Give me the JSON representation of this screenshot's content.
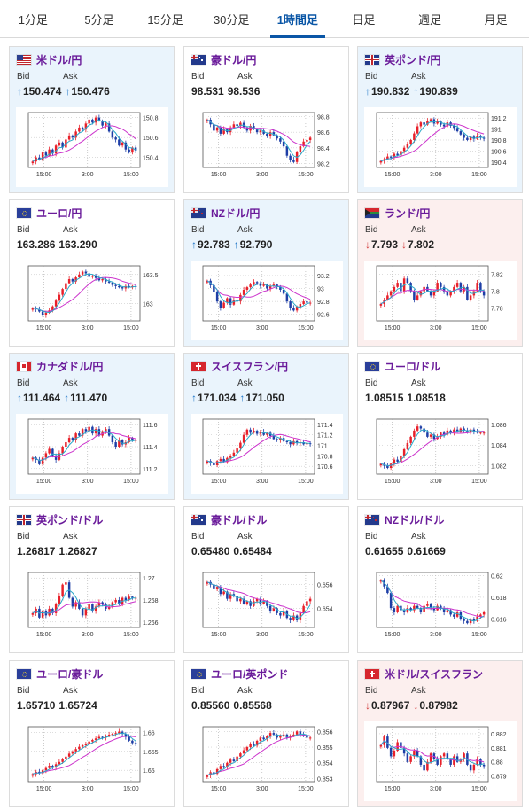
{
  "tabs": [
    {
      "label": "1分足",
      "active": false
    },
    {
      "label": "5分足",
      "active": false
    },
    {
      "label": "15分足",
      "active": false
    },
    {
      "label": "30分足",
      "active": false
    },
    {
      "label": "1時間足",
      "active": true
    },
    {
      "label": "日足",
      "active": false
    },
    {
      "label": "週足",
      "active": false
    },
    {
      "label": "月足",
      "active": false
    }
  ],
  "labels": {
    "bid": "Bid",
    "ask": "Ask"
  },
  "x_ticks": [
    "15:00",
    "3:00",
    "15:00"
  ],
  "colors": {
    "up_bg": "#eaf4fc",
    "down_bg": "#fcefee",
    "pair_name": "#6a1b9a",
    "arrow_up": "#1a73c7",
    "arrow_down": "#d23b3b",
    "candle_up": "#e8202a",
    "candle_down": "#1e3ea6",
    "ma_short": "#2aa9c9",
    "ma_long": "#cc33cc",
    "active_tab": "#0a56a6"
  },
  "pairs": [
    {
      "name": "米ドル/円",
      "flag": "us-flag",
      "trend": "up",
      "bid": "150.474",
      "ask": "150.476",
      "chart_data": {
        "type": "candlestick",
        "ylim": [
          150.3,
          150.85
        ],
        "yticks": [
          "150.8",
          "150.6",
          "150.4"
        ],
        "ytick_values": [
          150.8,
          150.6,
          150.4
        ],
        "closes": [
          150.36,
          150.4,
          150.38,
          150.45,
          150.42,
          150.48,
          150.44,
          150.52,
          150.55,
          150.5,
          150.58,
          150.62,
          150.6,
          150.66,
          150.7,
          150.68,
          150.74,
          150.78,
          150.75,
          150.8,
          150.77,
          150.72,
          150.74,
          150.66,
          150.6,
          150.58,
          150.52,
          150.55,
          150.48,
          150.45,
          150.5,
          150.47
        ]
      }
    },
    {
      "name": "豪ドル/円",
      "flag": "au-flag",
      "trend": "none",
      "bid": "98.531",
      "ask": "98.536",
      "chart_data": {
        "type": "candlestick",
        "ylim": [
          98.15,
          98.85
        ],
        "yticks": [
          "98.8",
          "98.6",
          "98.4",
          "98.2"
        ],
        "ytick_values": [
          98.8,
          98.6,
          98.4,
          98.2
        ],
        "closes": [
          98.76,
          98.7,
          98.62,
          98.66,
          98.58,
          98.64,
          98.6,
          98.66,
          98.7,
          98.68,
          98.72,
          98.66,
          98.62,
          98.68,
          98.64,
          98.6,
          98.62,
          98.58,
          98.55,
          98.6,
          98.56,
          98.52,
          98.48,
          98.42,
          98.3,
          98.25,
          98.22,
          98.35,
          98.42,
          98.48,
          98.5,
          98.53
        ]
      }
    },
    {
      "name": "英ポンド/円",
      "flag": "gb-flag",
      "trend": "up",
      "bid": "190.832",
      "ask": "190.839",
      "chart_data": {
        "type": "candlestick",
        "ylim": [
          190.3,
          191.3
        ],
        "yticks": [
          "191.2",
          "191",
          "190.8",
          "190.6",
          "190.4"
        ],
        "ytick_values": [
          191.2,
          191.0,
          190.8,
          190.6,
          190.4
        ],
        "closes": [
          190.42,
          190.45,
          190.5,
          190.48,
          190.55,
          190.52,
          190.6,
          190.66,
          190.72,
          190.8,
          190.92,
          191.05,
          191.12,
          191.08,
          191.15,
          191.18,
          191.1,
          191.14,
          191.08,
          191.05,
          191.12,
          191.06,
          191.02,
          190.96,
          190.9,
          190.84,
          190.8,
          190.86,
          190.82,
          190.88,
          190.84,
          190.83
        ]
      }
    },
    {
      "name": "ユーロ/円",
      "flag": "eu-flag",
      "trend": "none",
      "bid": "163.286",
      "ask": "163.290",
      "chart_data": {
        "type": "candlestick",
        "ylim": [
          162.7,
          163.65
        ],
        "yticks": [
          "163.5",
          "163"
        ],
        "ytick_values": [
          163.5,
          163.0
        ],
        "closes": [
          162.92,
          162.9,
          162.86,
          162.8,
          162.84,
          162.88,
          162.95,
          163.05,
          163.15,
          163.25,
          163.35,
          163.42,
          163.38,
          163.45,
          163.5,
          163.55,
          163.52,
          163.46,
          163.48,
          163.44,
          163.4,
          163.42,
          163.38,
          163.36,
          163.32,
          163.3,
          163.28,
          163.26,
          163.3,
          163.28,
          163.3,
          163.29
        ]
      }
    },
    {
      "name": "NZドル/円",
      "flag": "nz-flag",
      "trend": "up",
      "bid": "92.783",
      "ask": "92.790",
      "chart_data": {
        "type": "candlestick",
        "ylim": [
          92.5,
          93.35
        ],
        "yticks": [
          "93.2",
          "93",
          "92.8",
          "92.6"
        ],
        "ytick_values": [
          93.2,
          93.0,
          92.8,
          92.6
        ],
        "closes": [
          93.12,
          93.05,
          92.95,
          92.8,
          92.7,
          92.78,
          92.85,
          92.75,
          92.82,
          92.8,
          92.9,
          92.98,
          93.02,
          93.06,
          93.1,
          93.08,
          93.04,
          93.06,
          93.0,
          93.04,
          93.06,
          93.02,
          92.98,
          92.92,
          92.8,
          92.7,
          92.66,
          92.72,
          92.76,
          92.8,
          92.78,
          92.78
        ]
      }
    },
    {
      "name": "ランド/円",
      "flag": "za-flag",
      "trend": "down",
      "bid": "7.793",
      "ask": "7.802",
      "chart_data": {
        "type": "candlestick",
        "ylim": [
          7.765,
          7.83
        ],
        "yticks": [
          "7.82",
          "7.8",
          "7.78"
        ],
        "ytick_values": [
          7.82,
          7.8,
          7.78
        ],
        "closes": [
          7.785,
          7.79,
          7.795,
          7.8,
          7.805,
          7.81,
          7.8,
          7.815,
          7.81,
          7.8,
          7.79,
          7.795,
          7.8,
          7.805,
          7.8,
          7.795,
          7.8,
          7.81,
          7.805,
          7.8,
          7.795,
          7.8,
          7.805,
          7.81,
          7.8,
          7.805,
          7.79,
          7.795,
          7.8,
          7.81,
          7.8,
          7.795
        ]
      }
    },
    {
      "name": "カナダドル/円",
      "flag": "ca-flag",
      "trend": "up",
      "bid": "111.464",
      "ask": "111.470",
      "chart_data": {
        "type": "candlestick",
        "ylim": [
          111.15,
          111.65
        ],
        "yticks": [
          "111.6",
          "111.4",
          "111.2"
        ],
        "ytick_values": [
          111.6,
          111.4,
          111.2
        ],
        "closes": [
          111.3,
          111.28,
          111.24,
          111.3,
          111.34,
          111.38,
          111.32,
          111.28,
          111.34,
          111.4,
          111.44,
          111.48,
          111.46,
          111.52,
          111.5,
          111.56,
          111.54,
          111.58,
          111.52,
          111.56,
          111.5,
          111.54,
          111.56,
          111.5,
          111.44,
          111.4,
          111.46,
          111.42,
          111.44,
          111.48,
          111.46,
          111.46
        ]
      }
    },
    {
      "name": "スイスフラン/円",
      "flag": "ch-flag",
      "trend": "up",
      "bid": "171.034",
      "ask": "171.050",
      "chart_data": {
        "type": "candlestick",
        "ylim": [
          170.45,
          171.5
        ],
        "yticks": [
          "171.4",
          "171.2",
          "171",
          "170.8",
          "170.6"
        ],
        "ytick_values": [
          171.4,
          171.2,
          171.0,
          170.8,
          170.6
        ],
        "closes": [
          170.7,
          170.66,
          170.62,
          170.7,
          170.74,
          170.68,
          170.76,
          170.8,
          170.86,
          170.94,
          171.05,
          171.2,
          171.3,
          171.24,
          171.28,
          171.22,
          171.26,
          171.2,
          171.24,
          171.18,
          171.12,
          171.1,
          171.14,
          171.08,
          171.06,
          171.02,
          171.08,
          171.04,
          171.06,
          171.02,
          171.04,
          171.03
        ]
      }
    },
    {
      "name": "ユーロ/ドル",
      "flag": "eu-flag",
      "trend": "none",
      "bid": "1.08515",
      "ask": "1.08518",
      "chart_data": {
        "type": "candlestick",
        "ylim": [
          1.0812,
          1.0865
        ],
        "yticks": [
          "1.086",
          "1.084",
          "1.082"
        ],
        "ytick_values": [
          1.086,
          1.084,
          1.082
        ],
        "closes": [
          1.0822,
          1.082,
          1.0818,
          1.0822,
          1.0826,
          1.0824,
          1.083,
          1.0836,
          1.0842,
          1.0848,
          1.0854,
          1.0858,
          1.0856,
          1.0852,
          1.0848,
          1.085,
          1.0846,
          1.0848,
          1.0852,
          1.085,
          1.0854,
          1.0852,
          1.0855,
          1.0853,
          1.0856,
          1.0854,
          1.0852,
          1.0855,
          1.0853,
          1.0852,
          1.0852,
          1.0852
        ]
      }
    },
    {
      "name": "英ポンド/ドル",
      "flag": "gb-flag",
      "trend": "none",
      "bid": "1.26817",
      "ask": "1.26827",
      "chart_data": {
        "type": "candlestick",
        "ylim": [
          1.2655,
          1.2705
        ],
        "yticks": [
          "1.27",
          "1.268",
          "1.266"
        ],
        "ytick_values": [
          1.27,
          1.268,
          1.266
        ],
        "closes": [
          1.2668,
          1.2672,
          1.2664,
          1.267,
          1.2666,
          1.2672,
          1.2668,
          1.2676,
          1.2684,
          1.2694,
          1.2696,
          1.2682,
          1.2674,
          1.2678,
          1.2672,
          1.2666,
          1.2672,
          1.2676,
          1.267,
          1.2674,
          1.2678,
          1.2676,
          1.2672,
          1.2674,
          1.2678,
          1.268,
          1.2676,
          1.2682,
          1.268,
          1.2683,
          1.2682,
          1.2682
        ]
      }
    },
    {
      "name": "豪ドル/ドル",
      "flag": "au-flag",
      "trend": "none",
      "bid": "0.65480",
      "ask": "0.65484",
      "chart_data": {
        "type": "candlestick",
        "ylim": [
          0.6524,
          0.657
        ],
        "yticks": [
          "0.656",
          "0.654"
        ],
        "ytick_values": [
          0.656,
          0.654
        ],
        "closes": [
          0.6562,
          0.656,
          0.6556,
          0.6558,
          0.6552,
          0.6554,
          0.6548,
          0.6552,
          0.655,
          0.6546,
          0.6548,
          0.6544,
          0.6546,
          0.6542,
          0.6546,
          0.6548,
          0.6544,
          0.6546,
          0.6542,
          0.6538,
          0.654,
          0.6536,
          0.6534,
          0.6538,
          0.6532,
          0.653,
          0.6534,
          0.653,
          0.6536,
          0.6542,
          0.6546,
          0.6548
        ]
      }
    },
    {
      "name": "NZドル/ドル",
      "flag": "nz-flag",
      "trend": "none",
      "bid": "0.61655",
      "ask": "0.61669",
      "chart_data": {
        "type": "candlestick",
        "ylim": [
          0.6152,
          0.6203
        ],
        "yticks": [
          "0.62",
          "0.618",
          "0.616"
        ],
        "ytick_values": [
          0.62,
          0.618,
          0.616
        ],
        "closes": [
          0.6196,
          0.619,
          0.6184,
          0.617,
          0.6166,
          0.6172,
          0.6168,
          0.6166,
          0.617,
          0.6168,
          0.6172,
          0.617,
          0.6166,
          0.6172,
          0.6174,
          0.617,
          0.6168,
          0.6172,
          0.617,
          0.6166,
          0.6168,
          0.6164,
          0.6162,
          0.6166,
          0.616,
          0.6158,
          0.6156,
          0.616,
          0.6158,
          0.6162,
          0.6164,
          0.6166
        ]
      }
    },
    {
      "name": "ユーロ/豪ドル",
      "flag": "eu-flag",
      "trend": "none",
      "bid": "1.65710",
      "ask": "1.65724",
      "chart_data": {
        "type": "candlestick",
        "ylim": [
          1.647,
          1.6615
        ],
        "yticks": [
          "1.66",
          "1.655",
          "1.65"
        ],
        "ytick_values": [
          1.66,
          1.655,
          1.65
        ],
        "closes": [
          1.649,
          1.6496,
          1.6492,
          1.65,
          1.6506,
          1.6512,
          1.6508,
          1.6516,
          1.6522,
          1.653,
          1.6536,
          1.6544,
          1.655,
          1.6556,
          1.6562,
          1.6566,
          1.657,
          1.6576,
          1.658,
          1.6584,
          1.6588,
          1.6586,
          1.659,
          1.6594,
          1.6596,
          1.6598,
          1.6602,
          1.6596,
          1.6588,
          1.6578,
          1.6572,
          1.6571
        ]
      }
    },
    {
      "name": "ユーロ/英ポンド",
      "flag": "eu-flag",
      "trend": "none",
      "bid": "0.85560",
      "ask": "0.85568",
      "chart_data": {
        "type": "candlestick",
        "ylim": [
          0.8528,
          0.8563
        ],
        "yticks": [
          "0.856",
          "0.855",
          "0.854",
          "0.853"
        ],
        "ytick_values": [
          0.856,
          0.855,
          0.854,
          0.853
        ],
        "closes": [
          0.8532,
          0.8534,
          0.8533,
          0.8536,
          0.8538,
          0.8537,
          0.854,
          0.8542,
          0.8541,
          0.8544,
          0.8546,
          0.8548,
          0.855,
          0.8552,
          0.8551,
          0.8554,
          0.8556,
          0.8555,
          0.8557,
          0.8559,
          0.8558,
          0.8556,
          0.8557,
          0.8558,
          0.8556,
          0.8557,
          0.8558,
          0.856,
          0.8558,
          0.8557,
          0.8556,
          0.8556
        ]
      }
    },
    {
      "name": "米ドル/スイスフラン",
      "flag": "ch-flag",
      "trend": "down",
      "bid": "0.87967",
      "ask": "0.87982",
      "chart_data": {
        "type": "candlestick",
        "ylim": [
          0.8786,
          0.8825
        ],
        "yticks": [
          "0.882",
          "0.881",
          "0.88",
          "0.879"
        ],
        "ytick_values": [
          0.882,
          0.881,
          0.88,
          0.879
        ],
        "closes": [
          0.8812,
          0.8818,
          0.881,
          0.8804,
          0.8808,
          0.8814,
          0.881,
          0.8806,
          0.88,
          0.8804,
          0.8808,
          0.8804,
          0.8798,
          0.8794,
          0.88,
          0.8806,
          0.8802,
          0.8798,
          0.8804,
          0.8806,
          0.8802,
          0.8798,
          0.8804,
          0.88,
          0.8802,
          0.8806,
          0.8798,
          0.8794,
          0.8798,
          0.8802,
          0.8798,
          0.8797
        ]
      }
    }
  ]
}
